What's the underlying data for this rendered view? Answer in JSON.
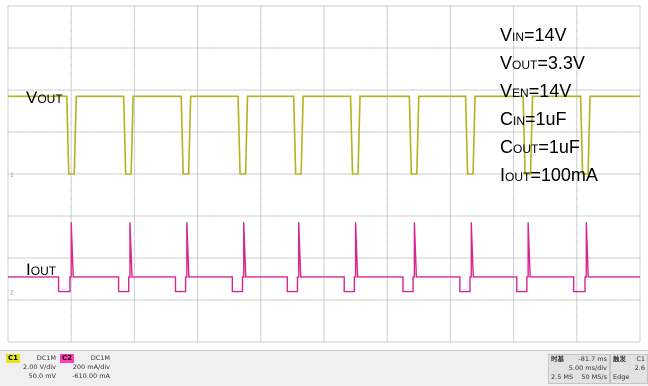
{
  "chart_data": {
    "type": "line",
    "title": "",
    "grid": true,
    "divisions": {
      "x": 10,
      "y": 8
    },
    "x_unit": "div",
    "series": [
      {
        "name": "VOUT",
        "channel": "C1",
        "color": "#b4b21e",
        "high_div": 5.85,
        "low_div": 4.0,
        "pulse_low_intervals_div": [
          [
            0.93,
            1.08
          ],
          [
            1.83,
            1.98
          ],
          [
            2.74,
            2.89
          ],
          [
            3.64,
            3.79
          ],
          [
            4.52,
            4.67
          ],
          [
            5.42,
            5.57
          ],
          [
            6.35,
            6.5
          ],
          [
            7.24,
            7.39
          ],
          [
            8.15,
            8.3
          ],
          [
            9.06,
            9.21
          ]
        ]
      },
      {
        "name": "IOUT",
        "channel": "C2",
        "color": "#d8268f",
        "baseline_div": 1.55,
        "dip_div": 1.2,
        "spike_div": 2.85,
        "spike_x_div": [
          1.0,
          1.93,
          2.83,
          3.73,
          4.6,
          5.5,
          6.43,
          7.33,
          8.23,
          9.15
        ],
        "dip_intervals_div": [
          [
            0.8,
            0.98
          ],
          [
            1.75,
            1.91
          ],
          [
            2.65,
            2.81
          ],
          [
            3.55,
            3.71
          ],
          [
            4.42,
            4.58
          ],
          [
            5.32,
            5.48
          ],
          [
            6.25,
            6.41
          ],
          [
            7.15,
            7.31
          ],
          [
            8.05,
            8.21
          ],
          [
            8.95,
            9.13
          ]
        ]
      }
    ],
    "annotations": [
      {
        "main": "V",
        "sub": "IN",
        "rest": "=14V"
      },
      {
        "main": "V",
        "sub": "OUT",
        "rest": "=3.3V"
      },
      {
        "main": "V",
        "sub": "EN",
        "rest": "=14V"
      },
      {
        "main": "C",
        "sub": "IN",
        "rest": "=1uF"
      },
      {
        "main": "C",
        "sub": "OUT",
        "rest": "=1uF"
      },
      {
        "main": "I",
        "sub": "OUT",
        "rest": "=100mA"
      }
    ],
    "trace_labels": [
      {
        "main": "V",
        "sub": "OUT"
      },
      {
        "main": "I",
        "sub": "OUT"
      }
    ]
  },
  "status": {
    "ch1": {
      "tag": "C1",
      "coupling": "DC1M",
      "scale": "2.00 V/div",
      "offset": "50.0 mV",
      "color": "#e6e61e"
    },
    "ch2": {
      "tag": "C2",
      "coupling": "DC1M",
      "scale": "200 mA/div",
      "offset": "-610.00 mA",
      "color": "#ff3cb4"
    },
    "timebase": {
      "label": "时基",
      "delay": "-81.7 ms",
      "scale": "5.00 ms/div",
      "rate": "2.5 MS",
      "rate2": "50 MS/s"
    },
    "trigger": {
      "label": "触发",
      "channel": "C1",
      "level": "2.6",
      "mode": "Edge"
    }
  },
  "colors": {
    "grid": "#cfcfcf",
    "grid_dots": "#bdbdbd",
    "ground_marker": "#999999"
  }
}
